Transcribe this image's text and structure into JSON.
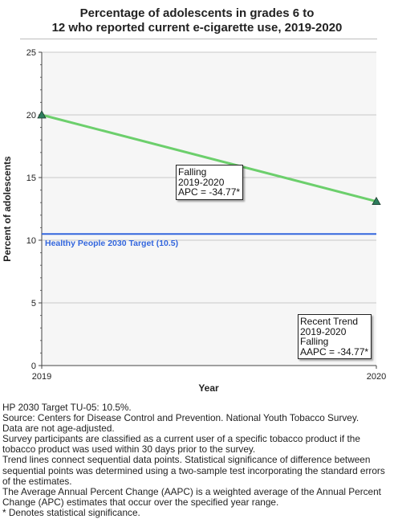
{
  "chart_data": {
    "type": "line",
    "title_line1": "Percentage of adolescents in grades 6 to",
    "title_line2": "12 who reported current e-cigarette use, 2019-2020",
    "xlabel": "Year",
    "ylabel": "Percent of adolescents",
    "x": [
      2019,
      2020
    ],
    "x_tick_labels": [
      "2019",
      "2020"
    ],
    "ylim": [
      0,
      25
    ],
    "y_ticks": [
      0,
      5,
      10,
      15,
      20,
      25
    ],
    "grid": true,
    "series": [
      {
        "values": [
          20.0,
          13.1
        ],
        "color": "#6ccf6c",
        "marker": "triangle",
        "marker_color": "#2e7d5e"
      }
    ],
    "target": {
      "value": 10.5,
      "label": "Healthy People 2030 Target (10.5)",
      "color": "#3366dd"
    },
    "annotations": {
      "segment": {
        "line1": "Falling",
        "line2": "2019-2020",
        "line3": "APC = -34.77*"
      },
      "recent": {
        "line1": "Recent Trend",
        "line2": "2019-2020",
        "line3": "Falling",
        "line4": "AAPC = -34.77*"
      }
    }
  },
  "notes": [
    "HP 2030 Target TU-05: 10.5%.",
    "Source: Centers for Disease Control and Prevention. National Youth Tobacco Survey.",
    "Data are not age-adjusted.",
    "Survey participants are classified as a current user of a specific tobacco product if the tobacco product was used within 30 days prior to the survey.",
    "Trend lines connect sequential data points. Statistical significance of difference between sequential points was determined using a two-sample test incorporating the standard errors of the estimates.",
    "The Average Annual Percent Change (AAPC) is a weighted average of the Annual Percent Change (APC) estimates that occur over the specified year range.",
    "* Denotes statistical significance."
  ]
}
